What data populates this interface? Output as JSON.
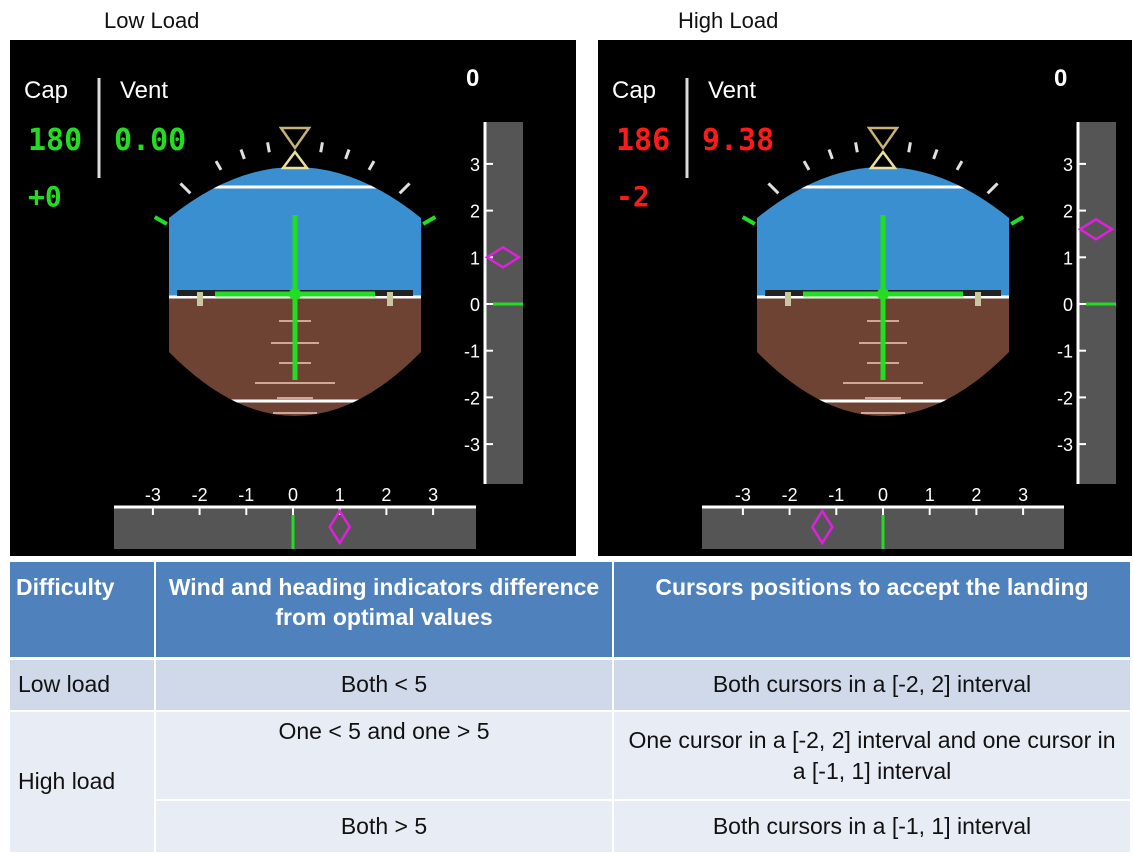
{
  "panels": [
    {
      "title": "Low Load",
      "cap_label": "Cap",
      "vent_label": "Vent",
      "cap_value": "180",
      "vent_value": "0.00",
      "delta_value": "+0",
      "counter": "0",
      "value_color": "#22dd22",
      "vertical_ticks": [
        "3",
        "2",
        "1",
        "0",
        "-1",
        "-2",
        "-3"
      ],
      "horizontal_ticks": [
        "-3",
        "-2",
        "-1",
        "0",
        "1",
        "2",
        "3"
      ],
      "vertical_cursor": 1.0,
      "horizontal_cursor": 1.0
    },
    {
      "title": "High Load",
      "cap_label": "Cap",
      "vent_label": "Vent",
      "cap_value": "186",
      "vent_value": "9.38",
      "delta_value": "-2",
      "counter": "0",
      "value_color": "#ff1a1a",
      "vertical_ticks": [
        "3",
        "2",
        "1",
        "0",
        "-1",
        "-2",
        "-3"
      ],
      "horizontal_ticks": [
        "-3",
        "-2",
        "-1",
        "0",
        "1",
        "2",
        "3"
      ],
      "vertical_cursor": 1.6,
      "horizontal_cursor": -1.3
    }
  ],
  "colors": {
    "sky": "#3a8fd0",
    "ground": "#6e4334",
    "cursor": "#e020e0",
    "symbol": "#22dd22",
    "scale_bg": "#555555"
  },
  "table": {
    "headers": [
      "Difficulty",
      "Wind and heading indicators difference from optimal values",
      "Cursors positions to accept the landing"
    ],
    "rows": [
      {
        "difficulty": "Low load",
        "diff": "Both < 5",
        "cursors": "Both cursors in a [-2, 2] interval"
      },
      {
        "difficulty": "High load",
        "diff": "One < 5 and one > 5",
        "cursors": "One cursor in a [-2, 2] interval and one cursor in a [-1, 1] interval"
      },
      {
        "difficulty": "",
        "diff": "Both > 5",
        "cursors": "Both cursors in a [-1, 1] interval"
      }
    ]
  }
}
